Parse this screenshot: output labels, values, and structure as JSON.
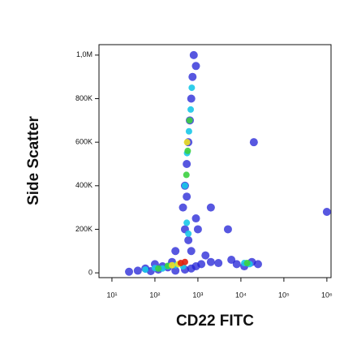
{
  "chart_data": {
    "type": "scatter",
    "x_label": "CD22 FITC",
    "y_label": "Side Scatter",
    "xscale": "log",
    "xlim": [
      5,
      1250000
    ],
    "ylim": [
      -22000,
      1048000
    ],
    "xticks": [
      {
        "value": 10,
        "label": "10¹"
      },
      {
        "value": 100,
        "label": "10²"
      },
      {
        "value": 1000,
        "label": "10³"
      },
      {
        "value": 10000,
        "label": "10⁴"
      },
      {
        "value": 100000,
        "label": "10⁵"
      },
      {
        "value": 1000000,
        "label": "10⁶"
      }
    ],
    "yticks": [
      {
        "value": 0,
        "label": "0"
      },
      {
        "value": 200000,
        "label": "200K"
      },
      {
        "value": 400000,
        "label": "400K"
      },
      {
        "value": 600000,
        "label": "600K"
      },
      {
        "value": 800000,
        "label": "800K"
      },
      {
        "value": 1000000,
        "label": "1,0M"
      }
    ],
    "series": [
      {
        "color": "#1f1fd6",
        "x": [
          25,
          40,
          60,
          80,
          120,
          150,
          200,
          300,
          500,
          700,
          900,
          1200,
          100,
          250,
          8000,
          12000,
          18000,
          25000,
          6000,
          1500,
          2000,
          3000,
          700,
          600,
          500,
          900,
          450,
          500,
          550,
          600,
          650,
          700,
          750,
          800,
          900,
          550,
          1000,
          2000,
          5000,
          20000,
          1000000,
          300
        ],
        "y": [
          5000,
          10000,
          20000,
          8000,
          15000,
          30000,
          25000,
          10000,
          15000,
          20000,
          30000,
          40000,
          40000,
          50000,
          40000,
          30000,
          50000,
          40000,
          60000,
          80000,
          50000,
          45000,
          100000,
          150000,
          200000,
          250000,
          300000,
          400000,
          500000,
          600000,
          700000,
          800000,
          900000,
          1000000,
          950000,
          350000,
          200000,
          300000,
          200000,
          600000,
          280000,
          100000
        ]
      },
      {
        "color": "#18c8e8",
        "x": [
          60,
          100,
          150,
          200,
          300,
          450,
          12000,
          16000,
          600,
          550,
          500,
          560,
          620,
          680,
          720
        ],
        "y": [
          15000,
          22000,
          20000,
          30000,
          35000,
          30000,
          45000,
          40000,
          180000,
          230000,
          400000,
          550000,
          650000,
          750000,
          850000
        ]
      },
      {
        "color": "#3cd040",
        "x": [
          120,
          200,
          14000,
          540,
          580,
          640
        ],
        "y": [
          20000,
          32000,
          45000,
          450000,
          560000,
          700000
        ]
      },
      {
        "color": "#f0e020",
        "x": [
          250,
          350,
          560
        ],
        "y": [
          35000,
          40000,
          600000
        ]
      },
      {
        "color": "#e02010",
        "x": [
          400,
          500
        ],
        "y": [
          45000,
          50000
        ]
      }
    ]
  }
}
